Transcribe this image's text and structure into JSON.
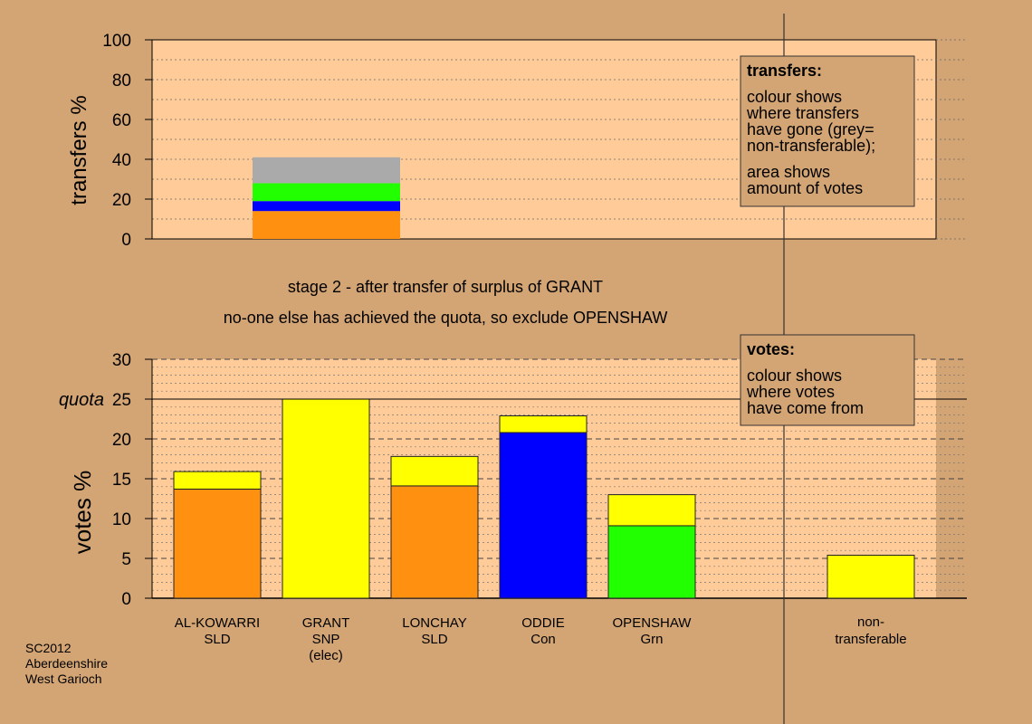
{
  "colors": {
    "background": "#d4a574",
    "panel": "#ffcc99",
    "legend_box": "#d4a574",
    "SLD": "#ff9010",
    "SNP": "#ffff00",
    "Con": "#0000ff",
    "Grn": "#22ff00",
    "nontransferable": "#aaaaaa"
  },
  "stage_text": {
    "line1": "stage 2 - after transfer of surplus of GRANT",
    "line2": "no-one else has achieved the quota, so exclude OPENSHAW"
  },
  "transfers_legend": {
    "title": "transfers:",
    "lines": [
      "colour shows",
      "where transfers",
      "have gone (grey=",
      "non-transferable);"
    ],
    "lines2": [
      "area shows",
      "amount of votes"
    ]
  },
  "votes_legend": {
    "title": "votes:",
    "lines": [
      "colour shows",
      "where votes",
      "have come from"
    ]
  },
  "footer": {
    "lines": [
      "SC2012",
      "Aberdeenshire",
      "West Garioch"
    ]
  },
  "chart_data": [
    {
      "type": "bar",
      "ylabel": "transfers %",
      "ylim": [
        0,
        100
      ],
      "yticks": [
        0,
        20,
        40,
        60,
        80,
        100
      ],
      "grid": true,
      "stacked_bar": {
        "segments": [
          {
            "party": "SLD",
            "value": 14
          },
          {
            "party": "Con",
            "value": 5
          },
          {
            "party": "Grn",
            "value": 9
          },
          {
            "party": "nontransferable",
            "value": 13
          }
        ]
      }
    },
    {
      "type": "bar",
      "ylabel": "votes %",
      "ylim": [
        0,
        30
      ],
      "yticks": [
        0,
        5,
        10,
        15,
        20,
        25,
        30
      ],
      "grid": true,
      "quota": {
        "label": "quota",
        "value": 25
      },
      "candidates": [
        {
          "name": "AL-KOWARRI",
          "party": "SLD",
          "extra": "",
          "segments": [
            {
              "party": "SLD",
              "value": 13.7
            },
            {
              "party": "SNP",
              "value": 2.2
            }
          ]
        },
        {
          "name": "GRANT",
          "party": "SNP",
          "extra": "(elec)",
          "segments": [
            {
              "party": "SNP",
              "value": 25
            }
          ]
        },
        {
          "name": "LONCHAY",
          "party": "SLD",
          "extra": "",
          "segments": [
            {
              "party": "SLD",
              "value": 14.1
            },
            {
              "party": "SNP",
              "value": 3.7
            }
          ]
        },
        {
          "name": "ODDIE",
          "party": "Con",
          "extra": "",
          "segments": [
            {
              "party": "Con",
              "value": 20.8
            },
            {
              "party": "SNP",
              "value": 2.1
            }
          ]
        },
        {
          "name": "OPENSHAW",
          "party": "Grn",
          "extra": "",
          "segments": [
            {
              "party": "Grn",
              "value": 9.1
            },
            {
              "party": "SNP",
              "value": 3.9
            }
          ]
        }
      ],
      "nontransferable": {
        "label_lines": [
          "non-",
          "transferable"
        ],
        "segments": [
          {
            "party": "SNP",
            "value": 5.4
          }
        ]
      }
    }
  ]
}
